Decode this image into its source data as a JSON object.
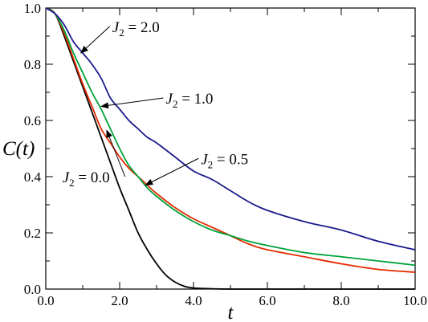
{
  "chart_data": {
    "type": "line",
    "title": "",
    "xlabel": "t",
    "ylabel": "C(t)",
    "xlim": [
      0,
      10
    ],
    "ylim": [
      0,
      1
    ],
    "grid": false,
    "x_ticks": [
      0,
      2,
      4,
      6,
      8,
      10
    ],
    "x_tick_labels": [
      "0.0",
      "2.0",
      "4.0",
      "6.0",
      "8.0",
      "10.0"
    ],
    "y_ticks": [
      0,
      0.2,
      0.4,
      0.6,
      0.8,
      1.0
    ],
    "y_tick_labels": [
      "0.0",
      "0.2",
      "0.4",
      "0.6",
      "0.8",
      "1.0"
    ],
    "series": [
      {
        "color": "#000000",
        "x": [
          0,
          0.25,
          0.5,
          0.75,
          1.0,
          1.25,
          1.5,
          1.75,
          2.0,
          2.25,
          2.5,
          2.75,
          3.0,
          3.25,
          3.5,
          3.75,
          4.0,
          4.5,
          5.0,
          6.0,
          7.0,
          8.0,
          9.0,
          10.0
        ],
        "y": [
          1.0,
          0.98,
          0.9,
          0.81,
          0.72,
          0.63,
          0.54,
          0.45,
          0.36,
          0.28,
          0.2,
          0.14,
          0.09,
          0.05,
          0.025,
          0.01,
          0.004,
          0.001,
          0.0,
          0.0,
          0.0,
          0.0,
          0.0,
          0.0
        ]
      },
      {
        "color": "#e52a00",
        "x": [
          0,
          0.25,
          0.5,
          0.75,
          1.0,
          1.25,
          1.5,
          1.75,
          2.0,
          2.25,
          2.5,
          2.75,
          3.0,
          3.5,
          4.0,
          4.5,
          5.0,
          5.5,
          6.0,
          7.0,
          8.0,
          9.0,
          10.0
        ],
        "y": [
          1.0,
          0.98,
          0.91,
          0.82,
          0.73,
          0.65,
          0.57,
          0.52,
          0.47,
          0.43,
          0.4,
          0.37,
          0.34,
          0.29,
          0.25,
          0.22,
          0.19,
          0.16,
          0.14,
          0.115,
          0.09,
          0.07,
          0.06
        ]
      },
      {
        "color": "#00a23a",
        "x": [
          0,
          0.25,
          0.5,
          0.75,
          1.0,
          1.25,
          1.5,
          1.75,
          2.0,
          2.25,
          2.5,
          2.75,
          3.0,
          3.5,
          4.0,
          4.5,
          5.0,
          5.5,
          6.0,
          7.0,
          8.0,
          9.0,
          10.0
        ],
        "y": [
          1.0,
          0.98,
          0.92,
          0.84,
          0.77,
          0.7,
          0.64,
          0.57,
          0.5,
          0.44,
          0.4,
          0.36,
          0.33,
          0.28,
          0.24,
          0.21,
          0.19,
          0.17,
          0.155,
          0.13,
          0.115,
          0.1,
          0.085
        ]
      },
      {
        "color": "#1a1a8c",
        "x": [
          0,
          0.25,
          0.5,
          0.75,
          1.0,
          1.25,
          1.5,
          1.75,
          2.0,
          2.25,
          2.5,
          2.75,
          3.0,
          3.5,
          4.0,
          4.5,
          5.0,
          5.5,
          6.0,
          7.0,
          8.0,
          9.0,
          10.0
        ],
        "y": [
          1.0,
          0.98,
          0.94,
          0.88,
          0.84,
          0.8,
          0.75,
          0.68,
          0.64,
          0.6,
          0.57,
          0.54,
          0.52,
          0.47,
          0.42,
          0.39,
          0.35,
          0.31,
          0.28,
          0.24,
          0.21,
          0.17,
          0.14
        ]
      }
    ],
    "annotations": [
      {
        "label_main": "J",
        "label_sub": "2",
        "label_rest": " = 2.0",
        "text_at": [
          1.8,
          0.915
        ],
        "arrow_to": [
          0.95,
          0.84
        ]
      },
      {
        "label_main": "J",
        "label_sub": "2",
        "label_rest": " = 1.0",
        "text_at": [
          3.25,
          0.66
        ],
        "arrow_to": [
          1.5,
          0.65
        ]
      },
      {
        "label_main": "J",
        "label_sub": "2",
        "label_rest": " = 0.0",
        "text_at": [
          0.45,
          0.38
        ],
        "arrow_to": [
          1.65,
          0.565
        ]
      },
      {
        "label_main": "J",
        "label_sub": "2",
        "label_rest": " = 0.5",
        "text_at": [
          4.2,
          0.445
        ],
        "arrow_to": [
          2.7,
          0.37
        ]
      }
    ]
  }
}
